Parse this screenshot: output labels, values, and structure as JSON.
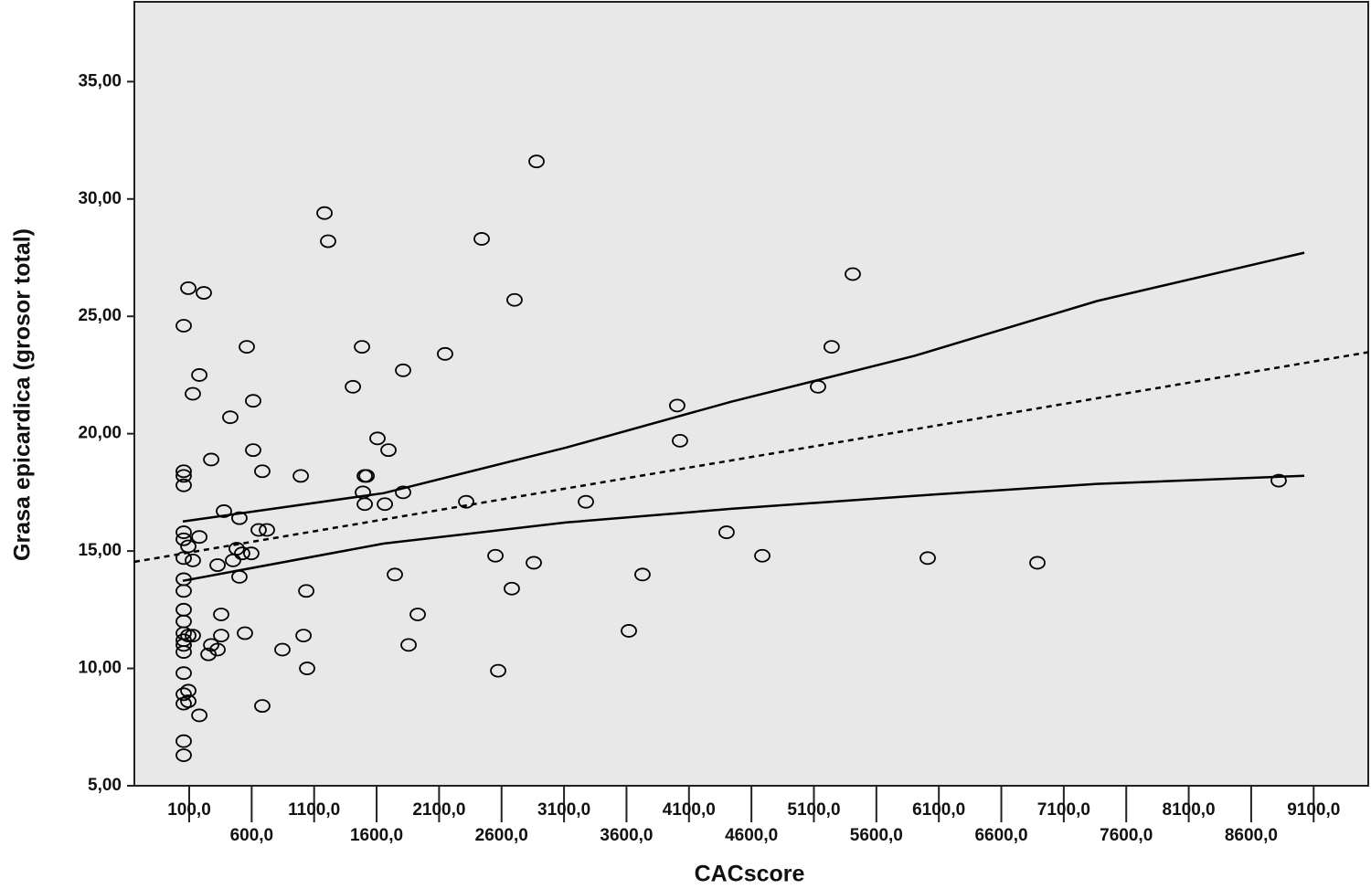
{
  "chart_data": {
    "type": "scatter",
    "x_label": "CACscore",
    "y_label": "Grasa epicardica (grosor total)",
    "x": [
      56,
      56,
      56,
      56,
      56,
      56,
      56,
      56,
      56,
      56,
      56,
      56,
      56,
      56,
      56,
      56,
      56,
      56,
      56,
      56,
      93,
      93,
      93,
      93,
      93,
      129,
      129,
      129,
      181,
      181,
      181,
      217,
      254,
      276,
      276,
      327,
      327,
      356,
      356,
      378,
      429,
      451,
      480,
      502,
      502,
      524,
      546,
      561,
      597,
      612,
      612,
      656,
      685,
      685,
      722,
      846,
      993,
      1015,
      1037,
      1044,
      1183,
      1212,
      1410,
      1483,
      1490,
      1505,
      1505,
      1520,
      1607,
      1666,
      1695,
      1746,
      1812,
      1812,
      1856,
      1929,
      2148,
      2317,
      2441,
      2551,
      2573,
      2682,
      2704,
      2858,
      2880,
      3275,
      3619,
      3728,
      4006,
      4028,
      4401,
      4687,
      5133,
      5242,
      5411,
      6011,
      6889,
      8820
    ],
    "values": [
      6.3,
      6.9,
      8.5,
      8.9,
      9.8,
      10.7,
      11.0,
      11.2,
      11.5,
      12.0,
      12.5,
      13.3,
      13.8,
      14.7,
      15.5,
      15.8,
      17.8,
      18.2,
      18.4,
      24.6,
      9.05,
      8.6,
      11.4,
      15.2,
      26.2,
      11.4,
      14.6,
      21.7,
      22.5,
      8.0,
      15.6,
      26.0,
      10.6,
      18.9,
      11.0,
      14.4,
      10.8,
      12.3,
      11.4,
      16.7,
      20.7,
      14.6,
      15.1,
      13.9,
      16.4,
      14.9,
      11.5,
      23.7,
      14.9,
      21.4,
      19.3,
      15.9,
      18.4,
      8.4,
      15.9,
      10.8,
      18.2,
      11.4,
      13.3,
      10.0,
      29.4,
      28.2,
      22.0,
      23.7,
      17.5,
      18.2,
      17.0,
      18.2,
      19.8,
      17.0,
      19.3,
      14.0,
      22.7,
      17.5,
      11.0,
      12.3,
      23.4,
      17.1,
      28.3,
      14.8,
      9.9,
      13.4,
      25.7,
      14.5,
      31.6,
      17.1,
      11.6,
      14.0,
      21.2,
      19.7,
      15.8,
      14.8,
      22.0,
      23.7,
      26.8,
      14.7,
      14.5,
      18.0
    ],
    "marker_color": "#000000",
    "background": "#e8e8e8",
    "lines": [
      {
        "style": "dashed",
        "color": "#000000",
        "x": [
          -339,
          9537
        ],
        "values": [
          14.54,
          23.47
        ]
      },
      {
        "style": "solid",
        "color": "#000000",
        "x": [
          49,
          1658,
          3118,
          4438,
          5902,
          7365,
          9025
        ],
        "values": [
          16.26,
          17.47,
          19.41,
          21.36,
          23.31,
          25.65,
          27.71
        ]
      },
      {
        "style": "solid",
        "color": "#000000",
        "x": [
          49,
          1658,
          3118,
          4438,
          5902,
          7365,
          9025
        ],
        "values": [
          13.73,
          15.32,
          16.22,
          16.8,
          17.35,
          17.86,
          18.21
        ]
      }
    ],
    "xlim": [
      -339,
      9537
    ],
    "ylim": [
      5,
      38.4
    ],
    "xticks": [
      {
        "value": 100,
        "label": "100,0"
      },
      {
        "value": 600,
        "label": "600,0"
      },
      {
        "value": 1100,
        "label": "1100,0"
      },
      {
        "value": 1600,
        "label": "1600,0"
      },
      {
        "value": 2100,
        "label": "2100,0"
      },
      {
        "value": 2600,
        "label": "2600,0"
      },
      {
        "value": 3100,
        "label": "3100,0"
      },
      {
        "value": 3600,
        "label": "3600,0"
      },
      {
        "value": 4100,
        "label": "4100,0"
      },
      {
        "value": 4600,
        "label": "4600,0"
      },
      {
        "value": 5100,
        "label": "5100,0"
      },
      {
        "value": 5600,
        "label": "5600,0"
      },
      {
        "value": 6100,
        "label": "6100,0"
      },
      {
        "value": 6600,
        "label": "6600,0"
      },
      {
        "value": 7100,
        "label": "7100,0"
      },
      {
        "value": 7600,
        "label": "7600,0"
      },
      {
        "value": 8100,
        "label": "8100,0"
      },
      {
        "value": 8600,
        "label": "8600,0"
      },
      {
        "value": 9100,
        "label": "9100,0"
      }
    ],
    "yticks": [
      {
        "value": 5,
        "label": "5,00"
      },
      {
        "value": 10,
        "label": "10,00"
      },
      {
        "value": 15,
        "label": "15,00"
      },
      {
        "value": 20,
        "label": "20,00"
      },
      {
        "value": 25,
        "label": "25,00"
      },
      {
        "value": 30,
        "label": "30,00"
      },
      {
        "value": 35,
        "label": "35,00"
      }
    ]
  }
}
